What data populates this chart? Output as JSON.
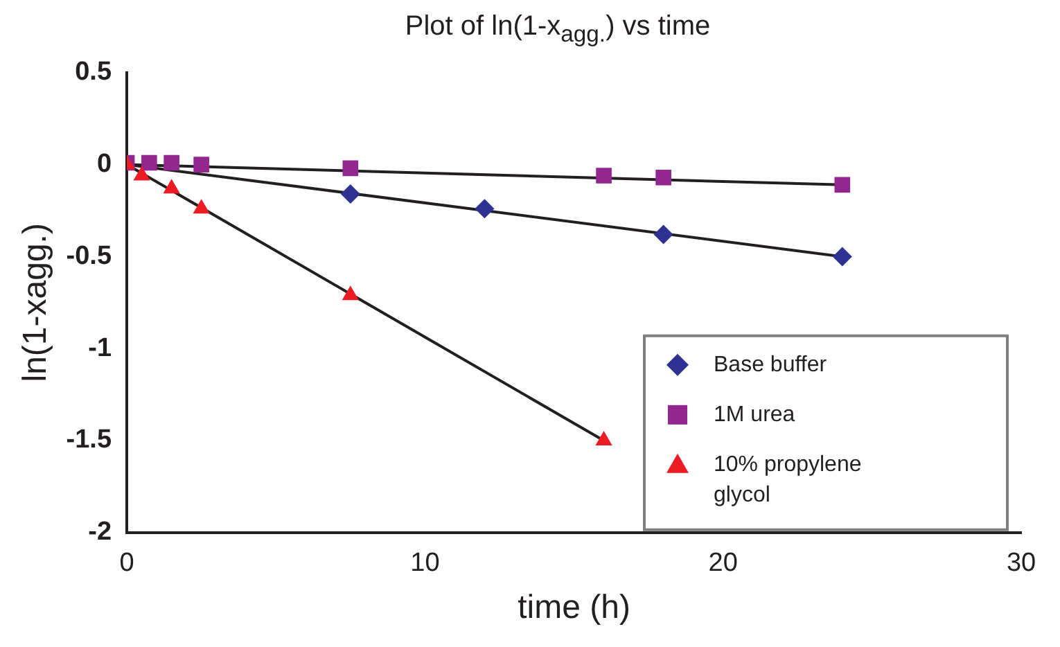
{
  "chart_data": {
    "type": "scatter",
    "title": "Plot of ln(1-x$_{agg.}$) vs time",
    "xlabel": "time (h)",
    "ylabel": "ln(1-xagg.)",
    "xlim": [
      0,
      30
    ],
    "xticks": [
      0,
      10,
      20,
      30
    ],
    "ylim": [
      -2,
      0.5
    ],
    "yticks": [
      -2,
      -1.5,
      -1,
      -0.5,
      0,
      0.5
    ],
    "grid": false,
    "legend": "bottom right",
    "series": [
      {
        "name": "Base buffer",
        "type": "scatter",
        "marker": "diamond",
        "color": "#2e3192",
        "x": [
          7.5,
          12,
          18,
          24
        ],
        "values": [
          -0.16,
          -0.24,
          -0.38,
          -0.5
        ]
      },
      {
        "name": "1M urea",
        "type": "scatter",
        "marker": "square",
        "color": "#92278f",
        "x": [
          0,
          0.75,
          1.5,
          2.5,
          7.5,
          16,
          18,
          24
        ],
        "values": [
          0.01,
          0.01,
          0.01,
          0,
          -0.02,
          -0.06,
          -0.07,
          -0.11
        ]
      },
      {
        "name": "10% propylene glycol",
        "type": "scatter",
        "marker": "triangle",
        "color": "#ed1c24",
        "x": [
          0,
          0.5,
          1.5,
          2.5,
          7.5,
          16
        ],
        "values": [
          0,
          -0.06,
          -0.13,
          -0.24,
          -0.71,
          -1.5
        ]
      },
      {
        "type": "line",
        "marker": "none",
        "color": "#231f20",
        "x": [
          0,
          24
        ],
        "values": [
          0,
          -0.5
        ]
      },
      {
        "type": "line",
        "marker": "none",
        "color": "#231f20",
        "x": [
          0,
          24
        ],
        "values": [
          0,
          -0.11
        ]
      },
      {
        "type": "line",
        "marker": "none",
        "color": "#231f20",
        "x": [
          0,
          16
        ],
        "values": [
          0,
          -1.5
        ]
      }
    ]
  }
}
